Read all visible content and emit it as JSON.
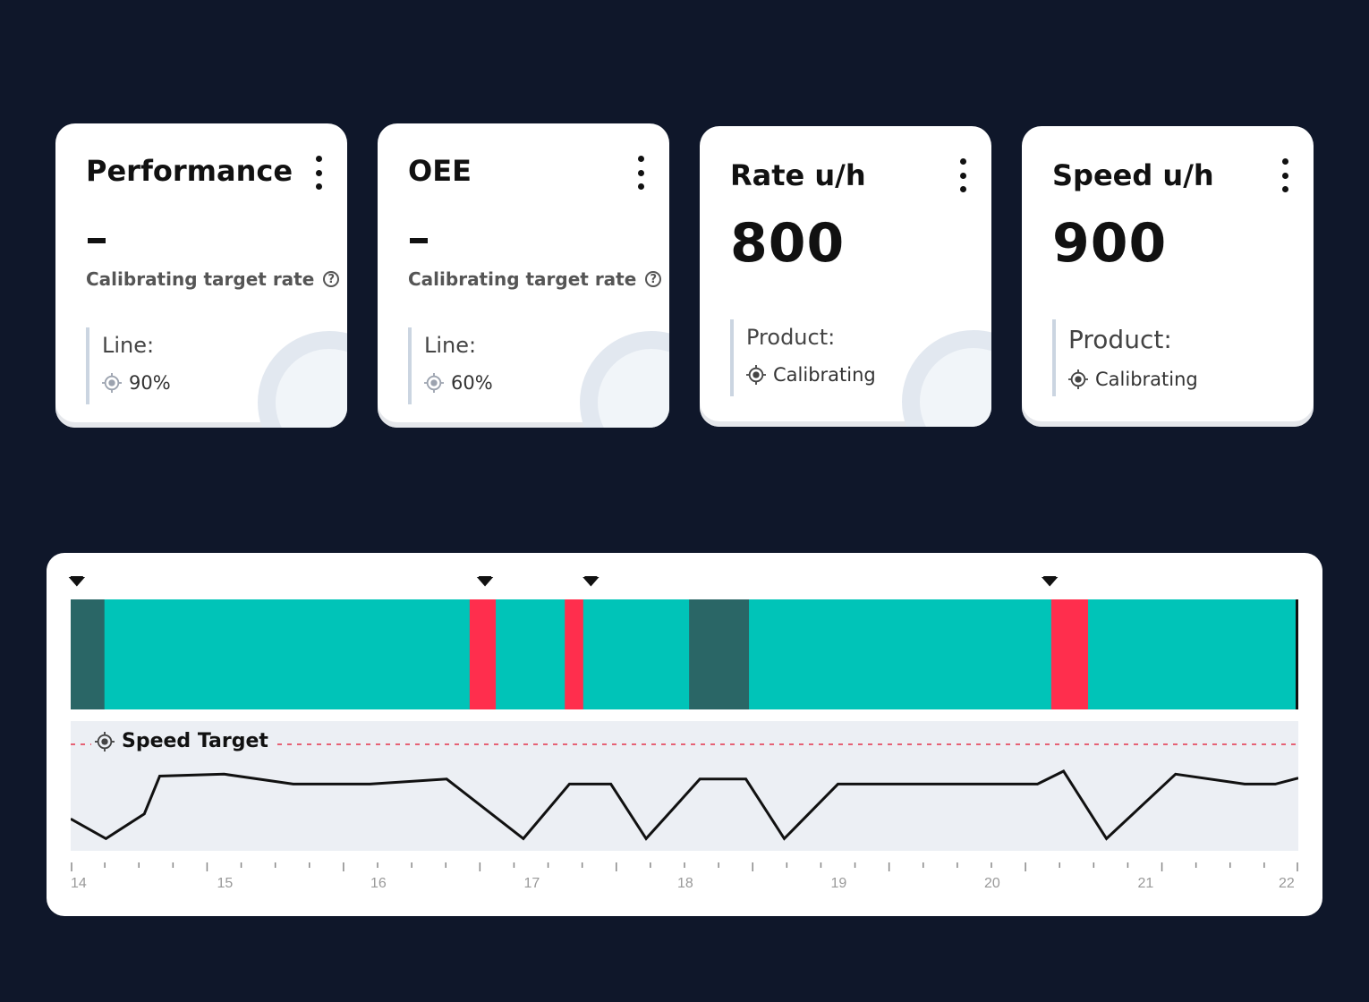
{
  "cards": [
    {
      "title": "Performance",
      "value": "-",
      "sub": "Calibrating target rate",
      "meta_label": "Line:",
      "meta_value": "90%"
    },
    {
      "title": "OEE",
      "value": "-",
      "sub": "Calibrating target rate",
      "meta_label": "Line:",
      "meta_value": "60%"
    },
    {
      "title": "Rate u/h",
      "value": "800",
      "meta_label": "Product:",
      "meta_value": "Calibrating"
    },
    {
      "title": "Speed u/h",
      "value": "900",
      "meta_label": "Product:",
      "meta_value": "Calibrating"
    }
  ],
  "chart": {
    "speed_label": "Speed Target",
    "x_ticks": [
      "14",
      "15",
      "16",
      "17",
      "18",
      "19",
      "20",
      "21",
      "22"
    ],
    "colors": {
      "running": "#00c4b8",
      "idle": "#2a6666",
      "stopped": "#ff2e4d",
      "line": "#111111",
      "target": "#e3344b"
    }
  },
  "chart_data": {
    "type": "line",
    "x_range": [
      14,
      22
    ],
    "status_segments": [
      {
        "state": "idle",
        "start": 14.0,
        "end": 14.22
      },
      {
        "state": "running",
        "start": 14.22,
        "end": 16.6
      },
      {
        "state": "stopped",
        "start": 16.6,
        "end": 16.77
      },
      {
        "state": "running",
        "start": 16.77,
        "end": 17.22
      },
      {
        "state": "stopped",
        "start": 17.22,
        "end": 17.34
      },
      {
        "state": "running",
        "start": 17.34,
        "end": 18.03
      },
      {
        "state": "idle",
        "start": 18.03,
        "end": 18.42
      },
      {
        "state": "running",
        "start": 18.42,
        "end": 20.39
      },
      {
        "state": "stopped",
        "start": 20.39,
        "end": 20.63
      },
      {
        "state": "running",
        "start": 20.63,
        "end": 22.0
      }
    ],
    "markers": [
      14.04,
      16.7,
      17.39,
      20.38
    ],
    "speed_target": 1.0,
    "speed": {
      "x": [
        14.0,
        14.23,
        14.48,
        14.58,
        15.0,
        15.45,
        15.95,
        16.45,
        16.95,
        17.25,
        17.52,
        17.75,
        18.1,
        18.4,
        18.65,
        19.0,
        19.4,
        20.3,
        20.47,
        20.75,
        21.2,
        21.65,
        21.85,
        22.0
      ],
      "y": [
        0.25,
        0.05,
        0.3,
        0.68,
        0.7,
        0.6,
        0.6,
        0.65,
        0.05,
        0.6,
        0.6,
        0.05,
        0.65,
        0.65,
        0.05,
        0.6,
        0.6,
        0.6,
        0.73,
        0.05,
        0.7,
        0.6,
        0.6,
        0.66
      ]
    }
  }
}
